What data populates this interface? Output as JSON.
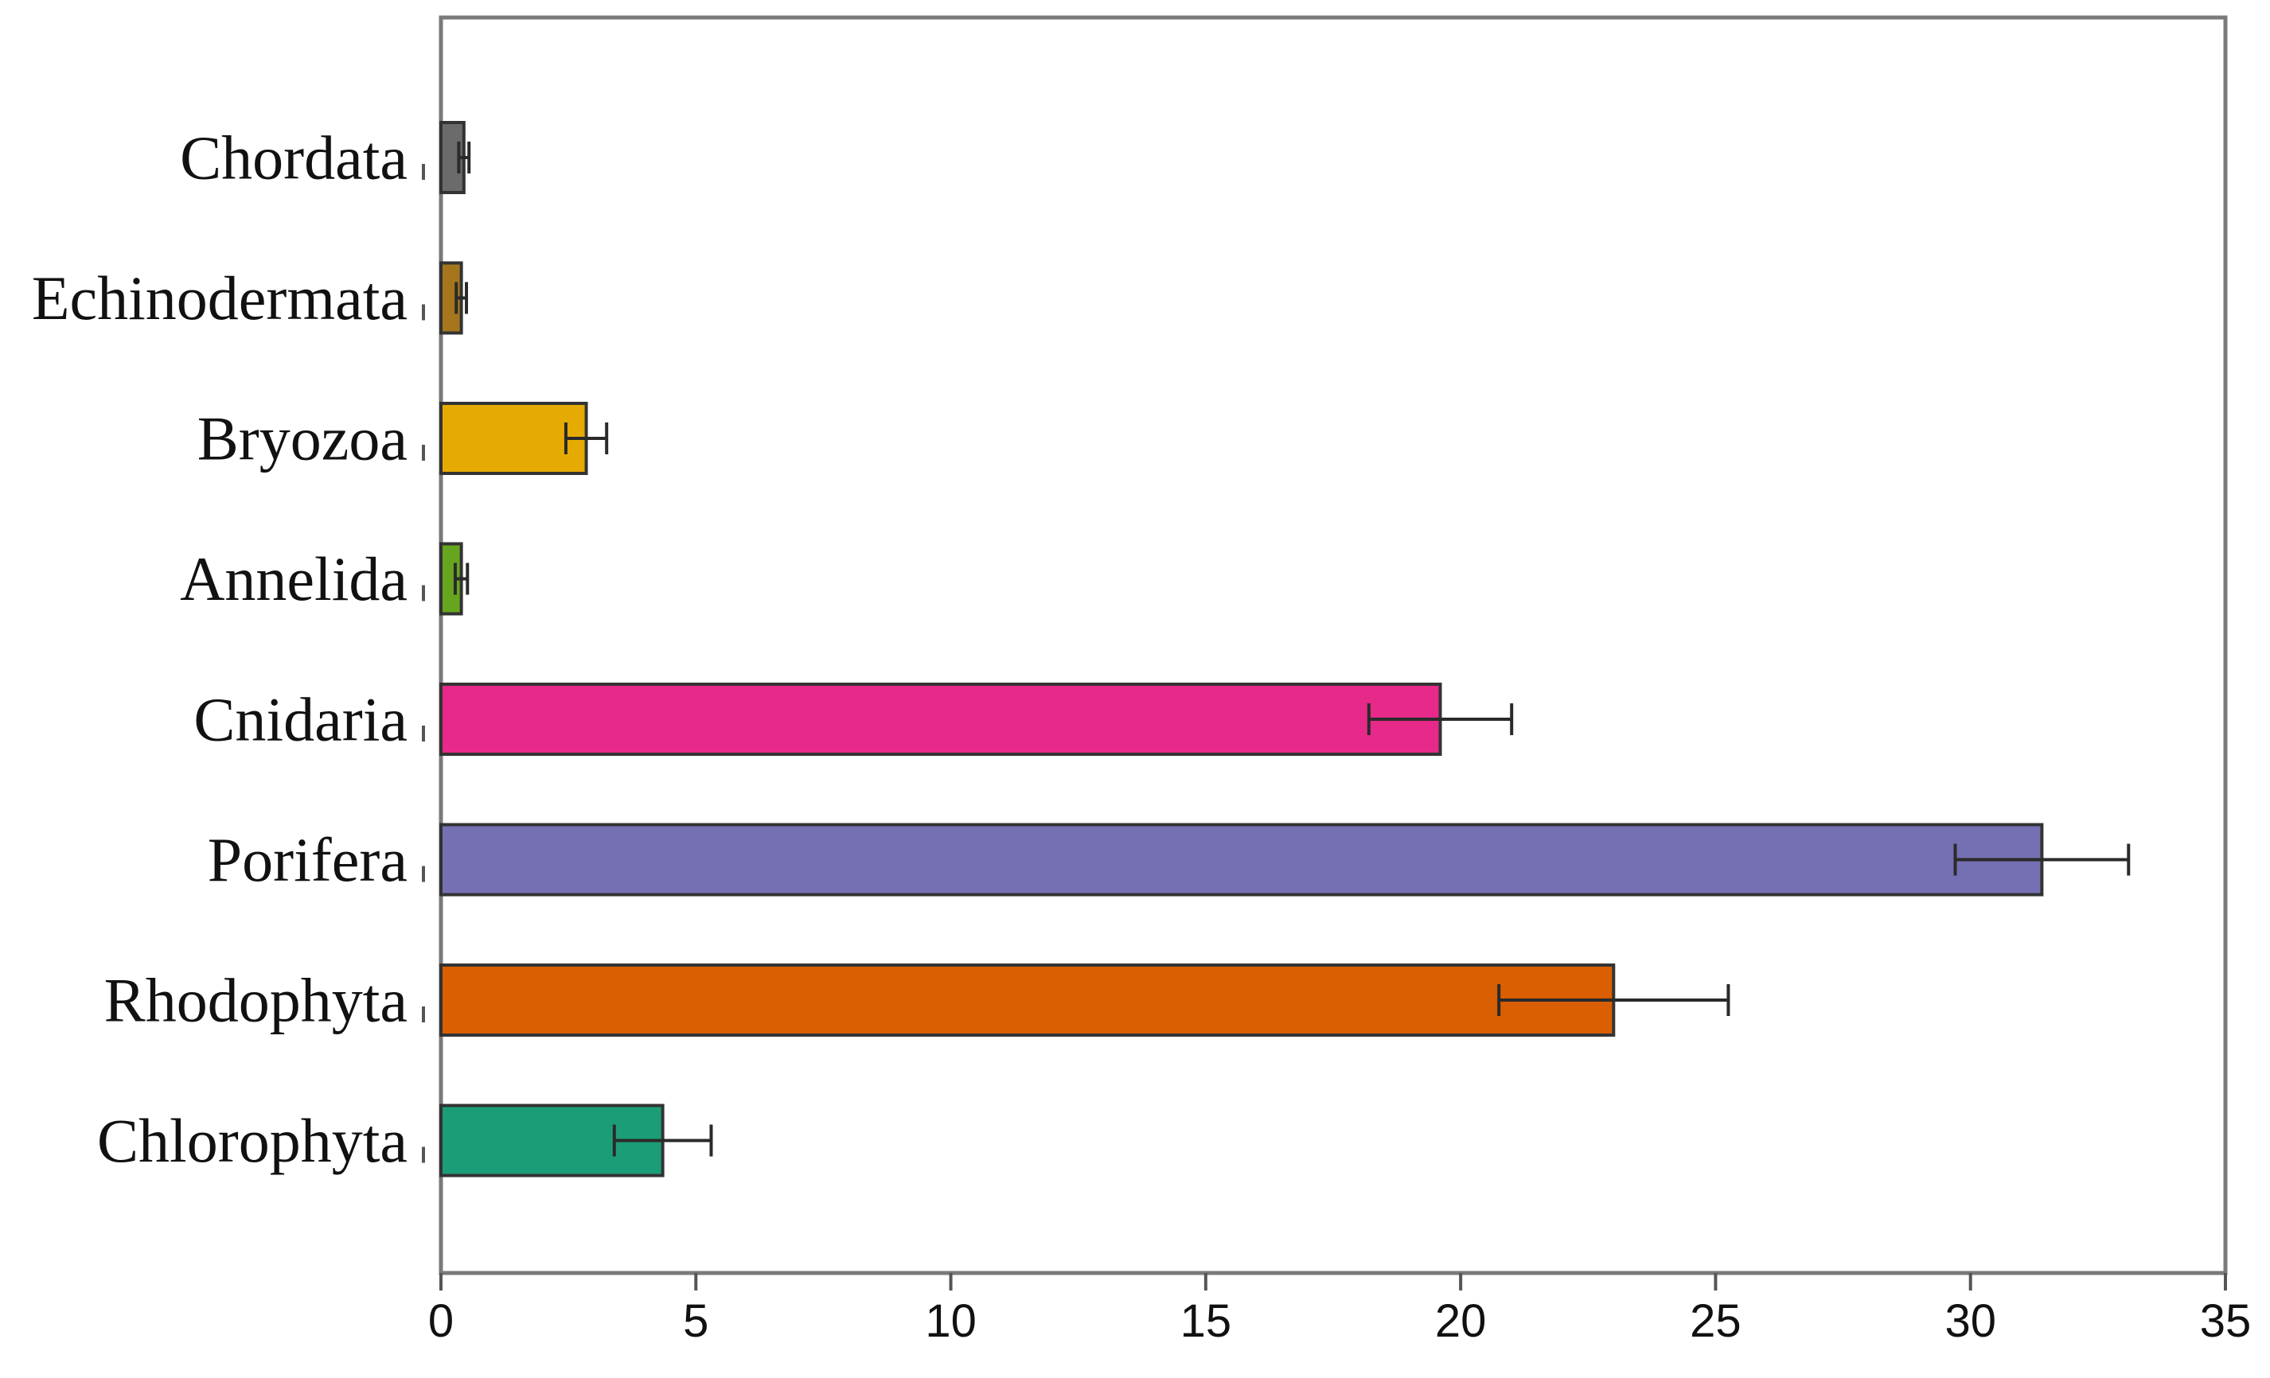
{
  "chart_data": {
    "type": "bar",
    "orientation": "horizontal",
    "title": "",
    "xlabel": "",
    "ylabel": "",
    "xlim": [
      0,
      35
    ],
    "x_ticks": [
      "0",
      "5",
      "10",
      "15",
      "20",
      "25",
      "30",
      "35"
    ],
    "grid": false,
    "legend": "none",
    "categories": [
      "Chordata",
      "Echinodermata",
      "Bryozoa",
      "Annelida",
      "Cnidaria",
      "Porifera",
      "Rhodophyta",
      "Chlorophyta"
    ],
    "values": [
      0.45,
      0.4,
      2.85,
      0.4,
      19.6,
      31.4,
      23.0,
      4.35
    ],
    "errors": [
      0.1,
      0.1,
      0.4,
      0.12,
      1.4,
      1.7,
      2.25,
      0.95
    ],
    "colors": [
      "#6b6b6b",
      "#a6761d",
      "#e6ab02",
      "#66a61e",
      "#e7298a",
      "#7570b3",
      "#d95f02",
      "#1b9e77"
    ]
  }
}
